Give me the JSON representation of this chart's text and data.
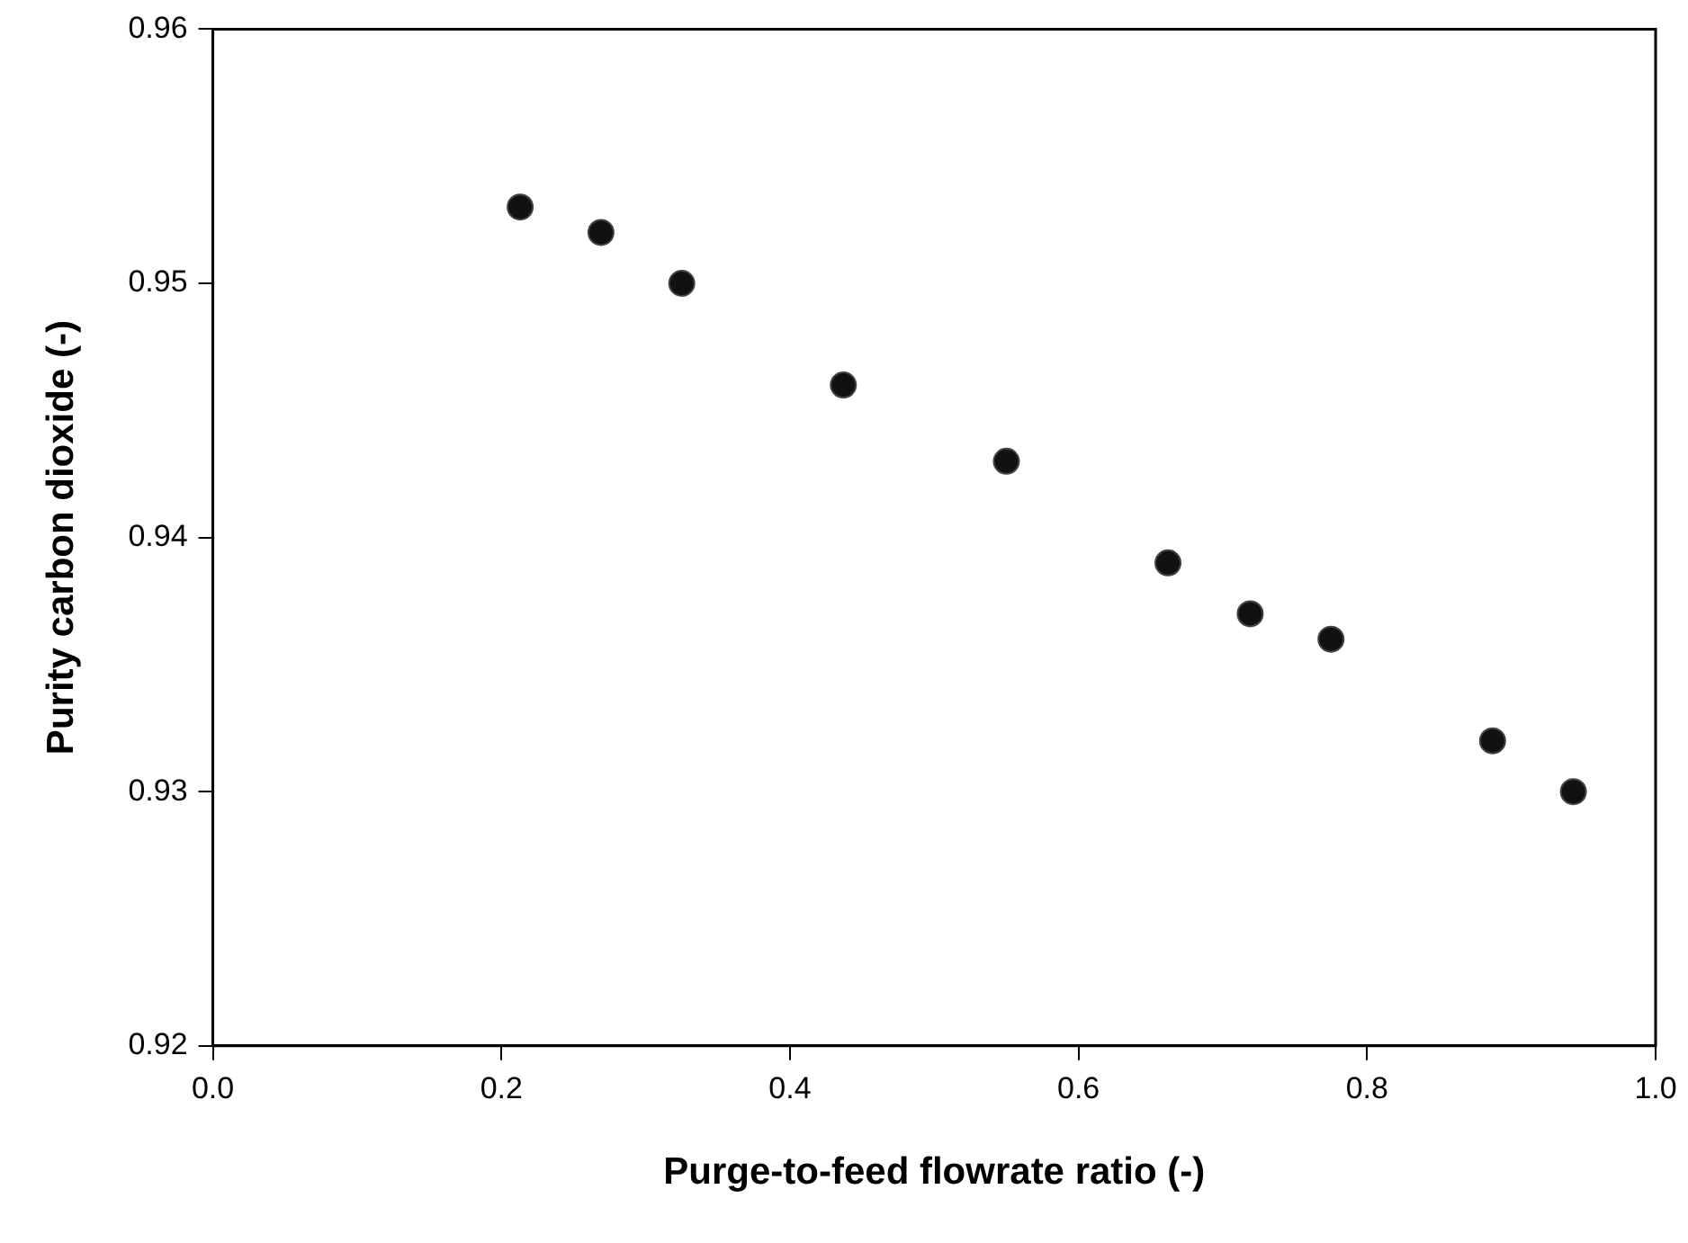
{
  "chart_data": {
    "type": "scatter",
    "xlabel": "Purge-to-feed flowrate ratio (-)",
    "ylabel": "Purity carbon dioxide (-)",
    "x": [
      0.213,
      0.269,
      0.325,
      0.437,
      0.55,
      0.662,
      0.719,
      0.775,
      0.887,
      0.943
    ],
    "values": [
      0.953,
      0.952,
      0.95,
      0.946,
      0.943,
      0.939,
      0.937,
      0.936,
      0.932,
      0.93
    ],
    "color": "#111111",
    "marker": "circle",
    "xlim": [
      0,
      1
    ],
    "xticks": [
      {
        "value": 0,
        "label": "0.0"
      },
      0.2,
      0.4,
      0.6,
      0.8,
      {
        "value": 1,
        "label": "1.0"
      }
    ],
    "ylim": [
      0.92,
      0.96
    ],
    "yticks": [
      0.92,
      0.93,
      0.94,
      0.95,
      0.96
    ],
    "grid": false,
    "legend": false
  }
}
